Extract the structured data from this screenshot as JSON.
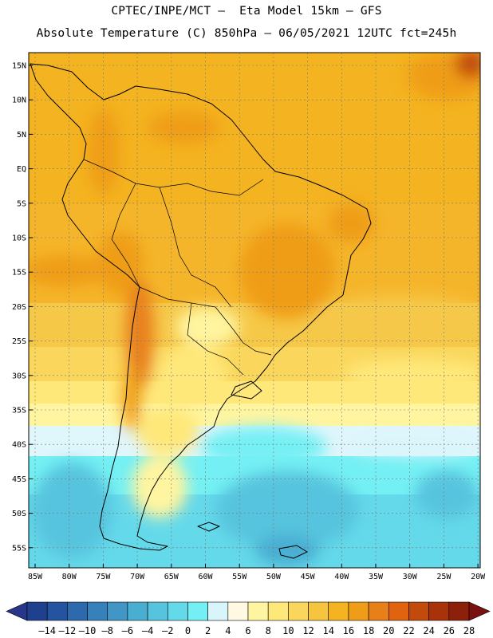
{
  "header": {
    "line1": "CPTEC/INPE/MCT –  Eta Model 15km – GFS",
    "line2": "Absolute Temperature (C) 850hPa – 06/05/2021 12UTC fct=245h"
  },
  "map": {
    "lat_labels": [
      "15N",
      "10N",
      "5N",
      "EQ",
      "5S",
      "10S",
      "15S",
      "20S",
      "25S",
      "30S",
      "35S",
      "40S",
      "45S",
      "50S",
      "55S"
    ],
    "lon_labels": [
      "85W",
      "80W",
      "75W",
      "70W",
      "65W",
      "60W",
      "55W",
      "50W",
      "45W",
      "40W",
      "35W",
      "30W",
      "25W",
      "20W"
    ]
  },
  "colorbar": {
    "labels": [
      "-14",
      "-12",
      "-10",
      "-8",
      "-6",
      "-4",
      "-2",
      "0",
      "2",
      "4",
      "6",
      "8",
      "10",
      "12",
      "14",
      "16",
      "18",
      "20",
      "22",
      "24",
      "26",
      "28"
    ],
    "colors": [
      "#1f3f8f",
      "#2453a0",
      "#2c6aad",
      "#3781ba",
      "#4196c6",
      "#4aaed2",
      "#56c4de",
      "#64d9ea",
      "#74f0f4",
      "#d8f5fb",
      "#fff8e3",
      "#fff5a0",
      "#ffe87a",
      "#fad75c",
      "#f5c540",
      "#f4b320",
      "#ef9d18",
      "#e8801a",
      "#e06410",
      "#c24a0c",
      "#a8330a",
      "#8c200a"
    ],
    "arrow_low_color": "#27358a",
    "arrow_high_color": "#7a1010"
  }
}
